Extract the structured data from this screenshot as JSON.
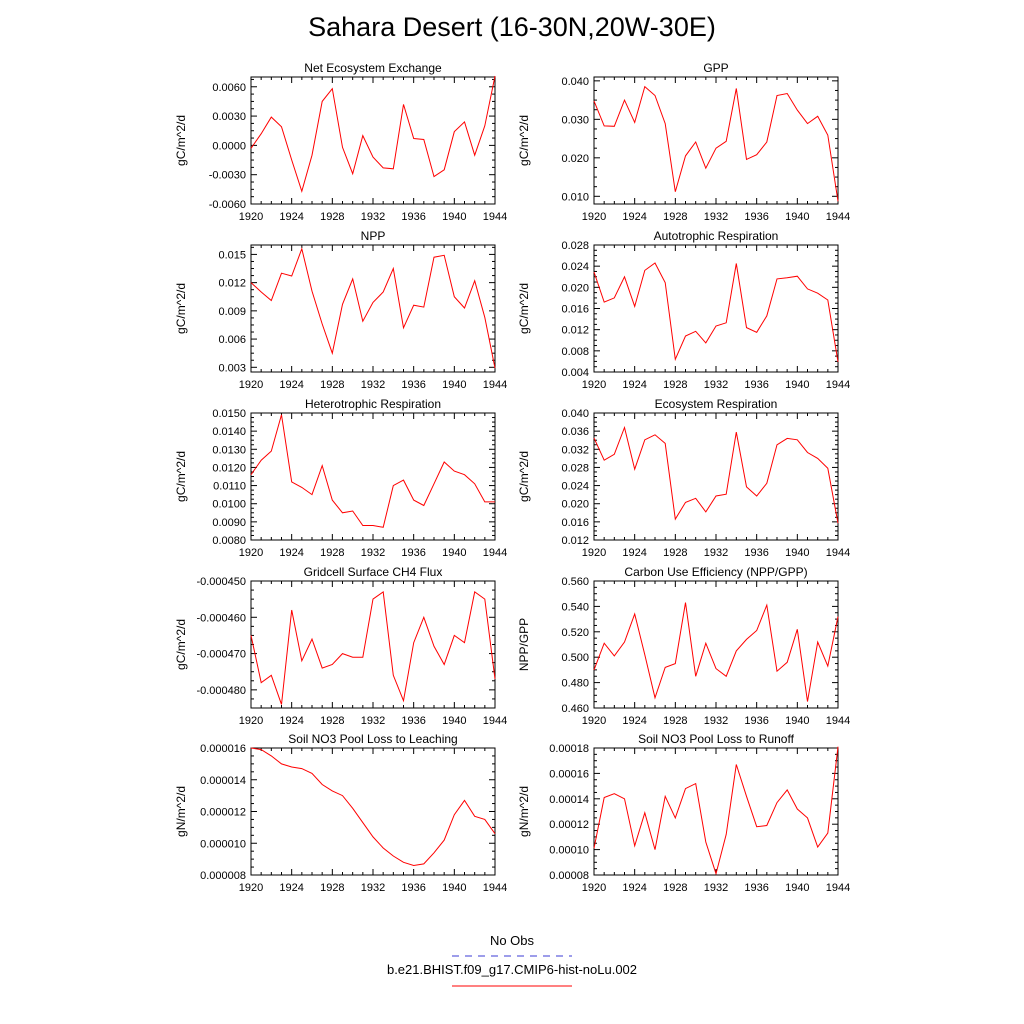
{
  "title": "Sahara Desert (16-30N,20W-30E)",
  "legend": [
    {
      "label": "No Obs",
      "color": "#3b3bd6",
      "dash": "dashed"
    },
    {
      "label": "b.e21.BHIST.f09_g17.CMIP6-hist-noLu.002",
      "color": "#ff0000",
      "dash": "solid"
    }
  ],
  "chart_data": [
    {
      "type": "line",
      "title": "Net Ecosystem Exchange",
      "ylabel": "gC/m^2/d",
      "xlim": [
        1920,
        1944
      ],
      "ylim": [
        -0.006,
        0.007
      ],
      "xticks": [
        "1920",
        "1924",
        "1928",
        "1932",
        "1936",
        "1940",
        "1944"
      ],
      "yticks": [
        "-0.0060",
        "-0.0030",
        "0.0000",
        "0.0030",
        "0.0060"
      ],
      "ytick_values": [
        -0.006,
        -0.003,
        0,
        0.003,
        0.006
      ],
      "x": [
        1920,
        1921,
        1922,
        1923,
        1924,
        1925,
        1926,
        1927,
        1928,
        1929,
        1930,
        1931,
        1932,
        1933,
        1934,
        1935,
        1936,
        1937,
        1938,
        1939,
        1940,
        1941,
        1942,
        1943,
        1944
      ],
      "values": [
        -0.0003,
        0.0012,
        0.0029,
        0.0019,
        -0.0015,
        -0.0047,
        -0.001,
        0.0045,
        0.0058,
        -0.0002,
        -0.0029,
        0.001,
        -0.0012,
        -0.0023,
        -0.0024,
        0.0042,
        0.0007,
        0.0006,
        -0.0032,
        -0.0025,
        0.0014,
        0.0024,
        -0.001,
        0.002,
        0.0071
      ]
    },
    {
      "type": "line",
      "title": "GPP",
      "ylabel": "gC/m^2/d",
      "xlim": [
        1920,
        1944
      ],
      "ylim": [
        0.008,
        0.041
      ],
      "xticks": [
        "1920",
        "1924",
        "1928",
        "1932",
        "1936",
        "1940",
        "1944"
      ],
      "yticks": [
        "0.010",
        "0.020",
        "0.030",
        "0.040"
      ],
      "ytick_values": [
        0.01,
        0.02,
        0.03,
        0.04
      ],
      "x": [
        1920,
        1921,
        1922,
        1923,
        1924,
        1925,
        1926,
        1927,
        1928,
        1929,
        1930,
        1931,
        1932,
        1933,
        1934,
        1935,
        1936,
        1937,
        1938,
        1939,
        1940,
        1941,
        1942,
        1943,
        1944
      ],
      "values": [
        0.0348,
        0.0283,
        0.0282,
        0.035,
        0.0292,
        0.0385,
        0.0362,
        0.0289,
        0.0112,
        0.0205,
        0.0241,
        0.0173,
        0.0225,
        0.0243,
        0.038,
        0.0196,
        0.0208,
        0.0241,
        0.0362,
        0.0367,
        0.0324,
        0.0289,
        0.0308,
        0.0259,
        0.0087
      ]
    },
    {
      "type": "line",
      "title": "NPP",
      "ylabel": "gC/m^2/d",
      "xlim": [
        1920,
        1944
      ],
      "ylim": [
        0.0025,
        0.016
      ],
      "xticks": [
        "1920",
        "1924",
        "1928",
        "1932",
        "1936",
        "1940",
        "1944"
      ],
      "yticks": [
        "0.003",
        "0.006",
        "0.009",
        "0.012",
        "0.015"
      ],
      "ytick_values": [
        0.003,
        0.006,
        0.009,
        0.012,
        0.015
      ],
      "x": [
        1920,
        1921,
        1922,
        1923,
        1924,
        1925,
        1926,
        1927,
        1928,
        1929,
        1930,
        1931,
        1932,
        1933,
        1934,
        1935,
        1936,
        1937,
        1938,
        1939,
        1940,
        1941,
        1942,
        1943,
        1944
      ],
      "values": [
        0.012,
        0.011,
        0.0101,
        0.013,
        0.0127,
        0.0156,
        0.0111,
        0.0076,
        0.0045,
        0.0097,
        0.0124,
        0.0079,
        0.0099,
        0.011,
        0.0135,
        0.0072,
        0.0096,
        0.0094,
        0.0147,
        0.0149,
        0.0105,
        0.0093,
        0.0122,
        0.0083,
        0.0029
      ]
    },
    {
      "type": "line",
      "title": "Autotrophic Respiration",
      "ylabel": "gC/m^2/d",
      "xlim": [
        1920,
        1944
      ],
      "ylim": [
        0.004,
        0.028
      ],
      "xticks": [
        "1920",
        "1924",
        "1928",
        "1932",
        "1936",
        "1940",
        "1944"
      ],
      "yticks": [
        "0.004",
        "0.008",
        "0.012",
        "0.016",
        "0.020",
        "0.024",
        "0.028"
      ],
      "ytick_values": [
        0.004,
        0.008,
        0.012,
        0.016,
        0.02,
        0.024,
        0.028
      ],
      "x": [
        1920,
        1921,
        1922,
        1923,
        1924,
        1925,
        1926,
        1927,
        1928,
        1929,
        1930,
        1931,
        1932,
        1933,
        1934,
        1935,
        1936,
        1937,
        1938,
        1939,
        1940,
        1941,
        1942,
        1943,
        1944
      ],
      "values": [
        0.0229,
        0.0172,
        0.018,
        0.022,
        0.0164,
        0.0232,
        0.0246,
        0.0209,
        0.0064,
        0.0108,
        0.0117,
        0.0095,
        0.0127,
        0.0133,
        0.0245,
        0.0124,
        0.0115,
        0.0146,
        0.0216,
        0.0218,
        0.0221,
        0.0197,
        0.0189,
        0.0176,
        0.0059
      ]
    },
    {
      "type": "line",
      "title": "Heterotrophic Respiration",
      "ylabel": "gC/m^2/d",
      "xlim": [
        1920,
        1944
      ],
      "ylim": [
        0.008,
        0.015
      ],
      "xticks": [
        "1920",
        "1924",
        "1928",
        "1932",
        "1936",
        "1940",
        "1944"
      ],
      "yticks": [
        "0.0080",
        "0.0090",
        "0.0100",
        "0.0110",
        "0.0120",
        "0.0130",
        "0.0140",
        "0.0150"
      ],
      "ytick_values": [
        0.008,
        0.009,
        0.01,
        0.011,
        0.012,
        0.013,
        0.014,
        0.015
      ],
      "x": [
        1920,
        1921,
        1922,
        1923,
        1924,
        1925,
        1926,
        1927,
        1928,
        1929,
        1930,
        1931,
        1932,
        1933,
        1934,
        1935,
        1936,
        1937,
        1938,
        1939,
        1940,
        1941,
        1942,
        1943,
        1944
      ],
      "values": [
        0.0116,
        0.0124,
        0.0129,
        0.0149,
        0.0112,
        0.0109,
        0.0105,
        0.0121,
        0.0102,
        0.0095,
        0.0096,
        0.0088,
        0.0088,
        0.0087,
        0.011,
        0.0113,
        0.0102,
        0.0099,
        0.0111,
        0.0123,
        0.0118,
        0.0116,
        0.0111,
        0.0101,
        0.0101
      ]
    },
    {
      "type": "line",
      "title": "Ecosystem Respiration",
      "ylabel": "gC/m^2/d",
      "xlim": [
        1920,
        1944
      ],
      "ylim": [
        0.012,
        0.04
      ],
      "xticks": [
        "1920",
        "1924",
        "1928",
        "1932",
        "1936",
        "1940",
        "1944"
      ],
      "yticks": [
        "0.012",
        "0.016",
        "0.020",
        "0.024",
        "0.028",
        "0.032",
        "0.036",
        "0.040"
      ],
      "ytick_values": [
        0.012,
        0.016,
        0.02,
        0.024,
        0.028,
        0.032,
        0.036,
        0.04
      ],
      "x": [
        1920,
        1921,
        1922,
        1923,
        1924,
        1925,
        1926,
        1927,
        1928,
        1929,
        1930,
        1931,
        1932,
        1933,
        1934,
        1935,
        1936,
        1937,
        1938,
        1939,
        1940,
        1941,
        1942,
        1943,
        1944
      ],
      "values": [
        0.0345,
        0.0296,
        0.0309,
        0.0368,
        0.0276,
        0.0341,
        0.0352,
        0.0333,
        0.0166,
        0.0203,
        0.0212,
        0.0182,
        0.0217,
        0.0221,
        0.0358,
        0.0237,
        0.0217,
        0.0245,
        0.033,
        0.0344,
        0.0341,
        0.0313,
        0.03,
        0.0278,
        0.0157
      ]
    },
    {
      "type": "line",
      "title": "Gridcell Surface CH4 Flux",
      "ylabel": "gC/m^2/d",
      "xlim": [
        1920,
        1944
      ],
      "ylim": [
        -0.000485,
        -0.00045
      ],
      "xticks": [
        "1920",
        "1924",
        "1928",
        "1932",
        "1936",
        "1940",
        "1944"
      ],
      "yticks": [
        "-0.000480",
        "-0.000470",
        "-0.000460",
        "-0.000450"
      ],
      "ytick_values": [
        -0.00048,
        -0.00047,
        -0.00046,
        -0.00045
      ],
      "x": [
        1920,
        1921,
        1922,
        1923,
        1924,
        1925,
        1926,
        1927,
        1928,
        1929,
        1930,
        1931,
        1932,
        1933,
        1934,
        1935,
        1936,
        1937,
        1938,
        1939,
        1940,
        1941,
        1942,
        1943,
        1944
      ],
      "values": [
        -0.000465,
        -0.000478,
        -0.000476,
        -0.000484,
        -0.000458,
        -0.000472,
        -0.000466,
        -0.000474,
        -0.000473,
        -0.00047,
        -0.000471,
        -0.000471,
        -0.000455,
        -0.000453,
        -0.000476,
        -0.000483,
        -0.000467,
        -0.00046,
        -0.000468,
        -0.000473,
        -0.000465,
        -0.000467,
        -0.000453,
        -0.000455,
        -0.000477
      ]
    },
    {
      "type": "line",
      "title": "Carbon Use Efficiency (NPP/GPP)",
      "ylabel": "NPP/GPP",
      "xlim": [
        1920,
        1944
      ],
      "ylim": [
        0.46,
        0.56
      ],
      "xticks": [
        "1920",
        "1924",
        "1928",
        "1932",
        "1936",
        "1940",
        "1944"
      ],
      "yticks": [
        "0.460",
        "0.480",
        "0.500",
        "0.520",
        "0.540",
        "0.560"
      ],
      "ytick_values": [
        0.46,
        0.48,
        0.5,
        0.52,
        0.54,
        0.56
      ],
      "x": [
        1920,
        1921,
        1922,
        1923,
        1924,
        1925,
        1926,
        1927,
        1928,
        1929,
        1930,
        1931,
        1932,
        1933,
        1934,
        1935,
        1936,
        1937,
        1938,
        1939,
        1940,
        1941,
        1942,
        1943,
        1944
      ],
      "values": [
        0.49,
        0.511,
        0.501,
        0.512,
        0.534,
        0.502,
        0.468,
        0.492,
        0.495,
        0.543,
        0.485,
        0.511,
        0.491,
        0.485,
        0.505,
        0.514,
        0.521,
        0.541,
        0.489,
        0.496,
        0.522,
        0.465,
        0.512,
        0.493,
        0.532
      ]
    },
    {
      "type": "line",
      "title": "Soil NO3 Pool Loss to Leaching",
      "ylabel": "gN/m^2/d",
      "xlim": [
        1920,
        1944
      ],
      "ylim": [
        8e-06,
        1.6e-05
      ],
      "xticks": [
        "1920",
        "1924",
        "1928",
        "1932",
        "1936",
        "1940",
        "1944"
      ],
      "yticks": [
        "0.000008",
        "0.000010",
        "0.000012",
        "0.000014",
        "0.000016"
      ],
      "ytick_values": [
        8e-06,
        1e-05,
        1.2e-05,
        1.4e-05,
        1.6e-05
      ],
      "x": [
        1920,
        1921,
        1922,
        1923,
        1924,
        1925,
        1926,
        1927,
        1928,
        1929,
        1930,
        1931,
        1932,
        1933,
        1934,
        1935,
        1936,
        1937,
        1938,
        1939,
        1940,
        1941,
        1942,
        1943,
        1944
      ],
      "values": [
        1.6e-05,
        1.59e-05,
        1.55e-05,
        1.5e-05,
        1.48e-05,
        1.47e-05,
        1.44e-05,
        1.37e-05,
        1.33e-05,
        1.3e-05,
        1.22e-05,
        1.13e-05,
        1.04e-05,
        9.7e-06,
        9.2e-06,
        8.8e-06,
        8.6e-06,
        8.7e-06,
        9.4e-06,
        1.02e-05,
        1.18e-05,
        1.27e-05,
        1.17e-05,
        1.15e-05,
        1.06e-05
      ]
    },
    {
      "type": "line",
      "title": "Soil NO3 Pool Loss to Runoff",
      "ylabel": "gN/m^2/d",
      "xlim": [
        1920,
        1944
      ],
      "ylim": [
        8e-05,
        0.00018
      ],
      "xticks": [
        "1920",
        "1924",
        "1928",
        "1932",
        "1936",
        "1940",
        "1944"
      ],
      "yticks": [
        "0.00008",
        "0.00010",
        "0.00012",
        "0.00014",
        "0.00016",
        "0.00018"
      ],
      "ytick_values": [
        8e-05,
        0.0001,
        0.00012,
        0.00014,
        0.00016,
        0.00018
      ],
      "x": [
        1920,
        1921,
        1922,
        1923,
        1924,
        1925,
        1926,
        1927,
        1928,
        1929,
        1930,
        1931,
        1932,
        1933,
        1934,
        1935,
        1936,
        1937,
        1938,
        1939,
        1940,
        1941,
        1942,
        1943,
        1944
      ],
      "values": [
        0.000101,
        0.000141,
        0.000144,
        0.00014,
        0.000103,
        0.000129,
        0.0001,
        0.000142,
        0.000125,
        0.000148,
        0.000152,
        0.000106,
        8.1e-05,
        0.000112,
        0.000167,
        0.000142,
        0.000118,
        0.000119,
        0.000137,
        0.000147,
        0.000132,
        0.000125,
        0.000102,
        0.000113,
        0.000181
      ]
    }
  ]
}
